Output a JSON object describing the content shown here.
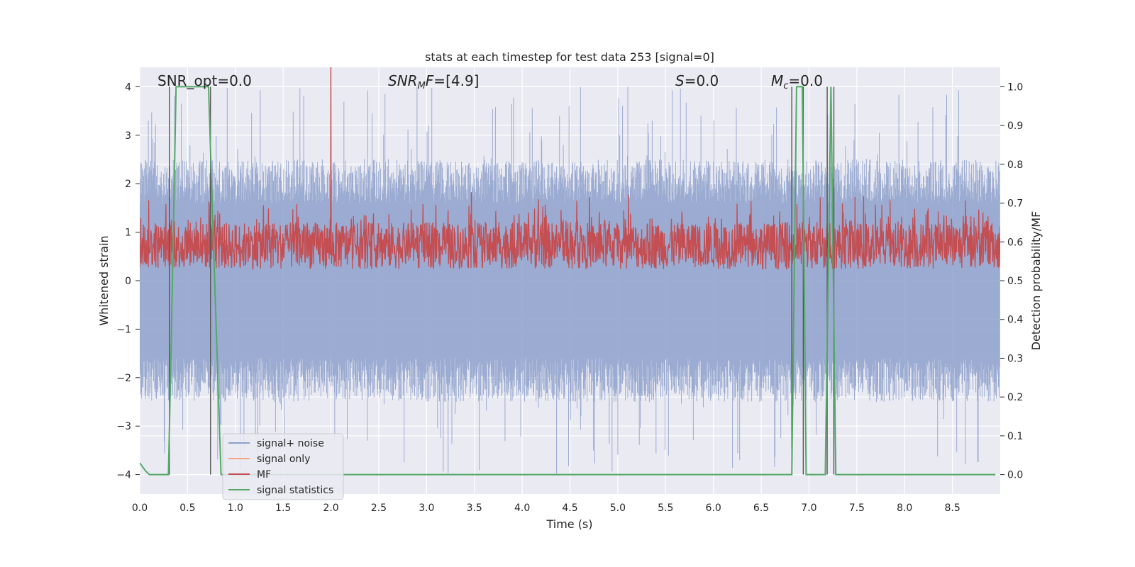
{
  "chart_data": {
    "type": "line",
    "title": "stats at each timestep for test data 253 [signal=0]",
    "xlabel": "Time (s)",
    "ylabel_left": "Whitened strain",
    "ylabel_right": "Detection probability/MF",
    "xlim": [
      0.0,
      9.0
    ],
    "ylim_left": [
      -4.4,
      4.4
    ],
    "ylim_right": [
      -0.05,
      1.05
    ],
    "xticks": [
      "0.0",
      "0.5",
      "1.0",
      "1.5",
      "2.0",
      "2.5",
      "3.0",
      "3.5",
      "4.0",
      "4.5",
      "5.0",
      "5.5",
      "6.0",
      "6.5",
      "7.0",
      "7.5",
      "8.0",
      "8.5"
    ],
    "yticks_left": [
      "4",
      "3",
      "2",
      "1",
      "0",
      "−1",
      "−2",
      "−3",
      "−4"
    ],
    "yticks_right": [
      "1.0",
      "0.9",
      "0.8",
      "0.7",
      "0.6",
      "0.5",
      "0.4",
      "0.3",
      "0.2",
      "0.1",
      "0.0"
    ],
    "annotations": {
      "snr_opt": "SNR_opt=0.0",
      "snr_mf": "[4.9]",
      "s": "=0.0",
      "mc": "=0.0"
    },
    "legend": {
      "placement": "lower-left",
      "entries": [
        "signal+ noise",
        "signal only",
        "MF",
        "signal statistics"
      ]
    },
    "colors": {
      "signal_noise": "#8da0cb",
      "signal_only": "#f4a582",
      "mf": "#c44e52",
      "statistics": "#55a868",
      "background": "#eaeaf2",
      "grid": "#ffffff"
    },
    "series": [
      {
        "name": "signal statistics",
        "axis": "right",
        "x": [
          0.0,
          0.06,
          0.1,
          0.3,
          0.33,
          0.38,
          0.72,
          0.77,
          0.85,
          6.82,
          6.87,
          6.93,
          6.97,
          7.17,
          7.23,
          7.28,
          8.95
        ],
        "y": [
          0.03,
          0.01,
          0.0,
          0.0,
          0.35,
          1.0,
          1.0,
          0.6,
          0.0,
          0.0,
          1.0,
          1.0,
          0.0,
          0.0,
          1.0,
          0.0,
          0.0
        ]
      }
    ],
    "vertical_lines_x": [
      0.31,
      0.74,
      6.82,
      6.94,
      7.19,
      7.26
    ],
    "signal_noise_band": {
      "p95_low": -1.6,
      "p95_high": 1.6,
      "max_peak": 4.0,
      "min_peak": -4.0
    },
    "mf_band": {
      "low": 0.0,
      "high": 0.7,
      "peak_x": 2.0,
      "peak_value": 1.0
    }
  }
}
